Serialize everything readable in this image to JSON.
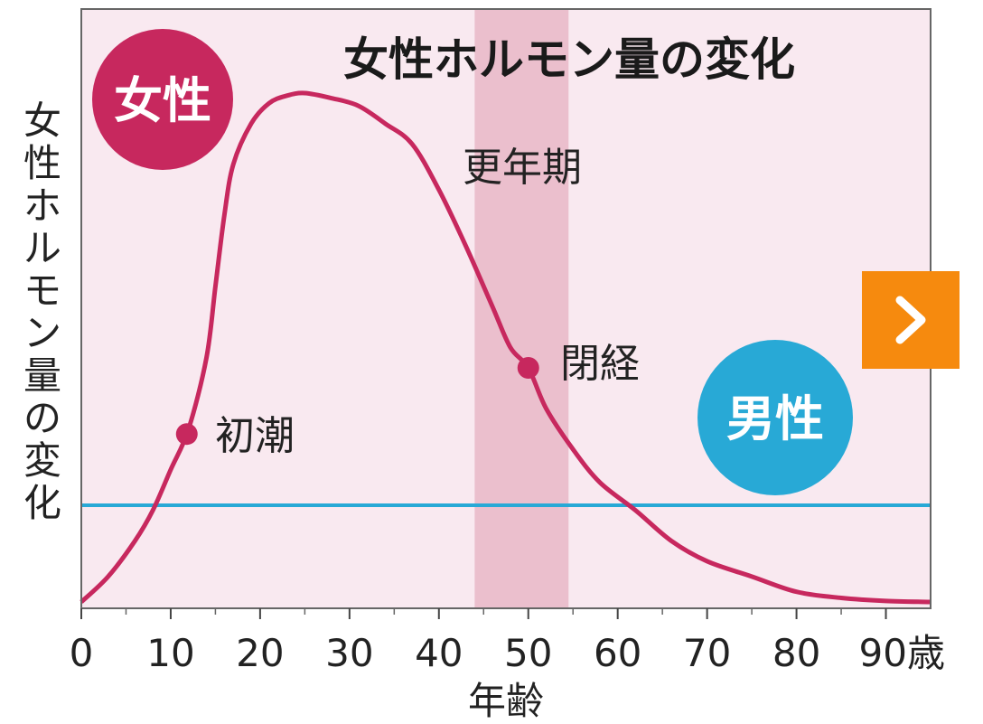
{
  "chart_data": {
    "type": "line",
    "title": "女性ホルモン量の変化",
    "ylabel": "女性ホルモン量の変化",
    "xlabel": "年齢",
    "x_ticks": [
      "0",
      "10",
      "20",
      "30",
      "40",
      "50",
      "60",
      "70",
      "80",
      "90歳"
    ],
    "x_tick_values": [
      0,
      10,
      20,
      30,
      40,
      50,
      60,
      70,
      80,
      90
    ],
    "xlim": [
      0,
      95
    ],
    "ylim": [
      0,
      100
    ],
    "series": [
      {
        "name": "女性",
        "color": "#c7285e",
        "x": [
          0,
          3,
          6,
          8,
          10,
          12,
          14,
          15,
          16,
          17,
          19,
          21,
          23,
          25,
          28,
          31,
          34,
          37,
          40,
          43,
          46,
          48,
          50,
          52,
          55,
          58,
          62,
          66,
          70,
          75,
          80,
          85,
          90,
          95
        ],
        "y": [
          0,
          5,
          12,
          18,
          26,
          34,
          48,
          62,
          76,
          86,
          94,
          98,
          99.5,
          100,
          99,
          97.5,
          94,
          90,
          81,
          70,
          58,
          50,
          46,
          38,
          30,
          23.5,
          18,
          12,
          8,
          5,
          2,
          0.8,
          0.2,
          0
        ]
      },
      {
        "name": "男性",
        "color": "#28a9d6",
        "x": [
          0,
          95
        ],
        "y": [
          19,
          19
        ]
      }
    ],
    "shaded_band": {
      "label": "更年期",
      "x_start": 44,
      "x_end": 54.5,
      "color": "#ebbfcd"
    },
    "annotations": [
      {
        "label": "初潮",
        "x": 11.8,
        "y": 33
      },
      {
        "label": "閉経",
        "x": 50,
        "y": 46
      }
    ],
    "legend": {
      "female": "女性",
      "male": "男性"
    },
    "background_color": "#f9e9f0",
    "grid": false
  },
  "nav": {
    "next_icon": "chevron-right-icon"
  }
}
